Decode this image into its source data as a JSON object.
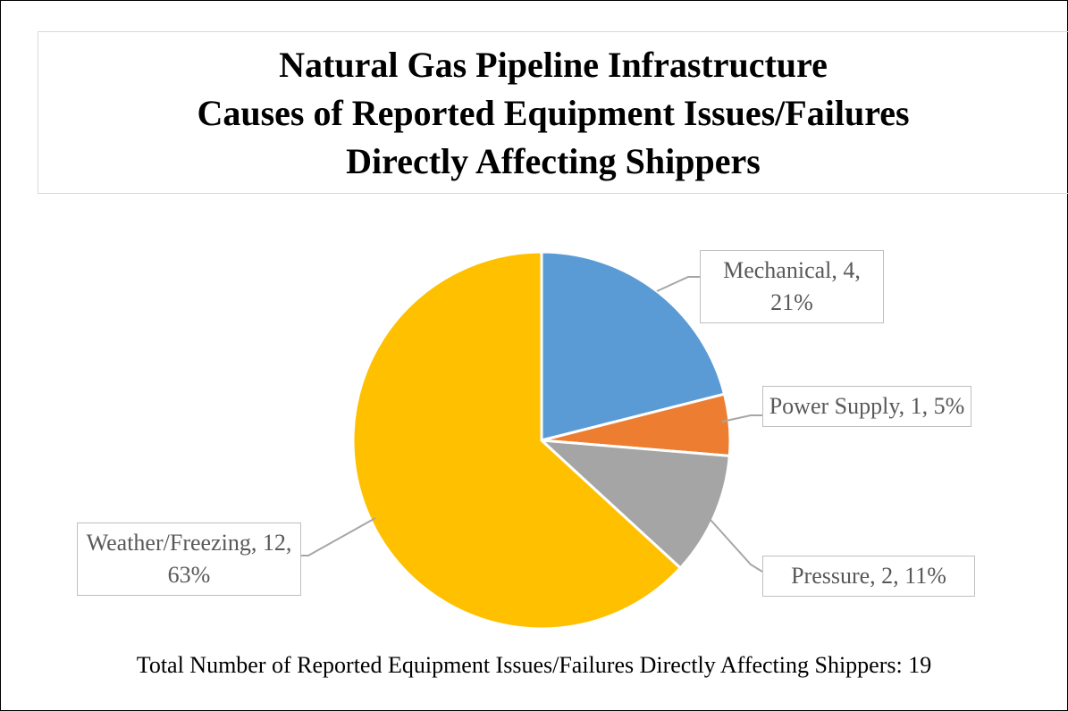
{
  "chart_data": {
    "type": "pie",
    "title": [
      "Natural Gas Pipeline Infrastructure",
      "Causes of Reported Equipment Issues/Failures",
      "Directly Affecting Shippers"
    ],
    "categories": [
      "Mechanical",
      "Power Supply",
      "Pressure",
      "Weather/Freezing"
    ],
    "values": [
      4,
      1,
      2,
      12
    ],
    "value_labels": [
      "Mechanical, 4, 21%",
      "Power Supply, 1, 5%",
      "Pressure, 2, 11%",
      "Weather/Freezing, 12, 63%"
    ],
    "colors": [
      "#5b9bd5",
      "#ed7d31",
      "#a5a5a5",
      "#ffc000"
    ],
    "note": "Total Number of Reported Equipment Issues/Failures Directly Affecting Shippers: 19"
  }
}
